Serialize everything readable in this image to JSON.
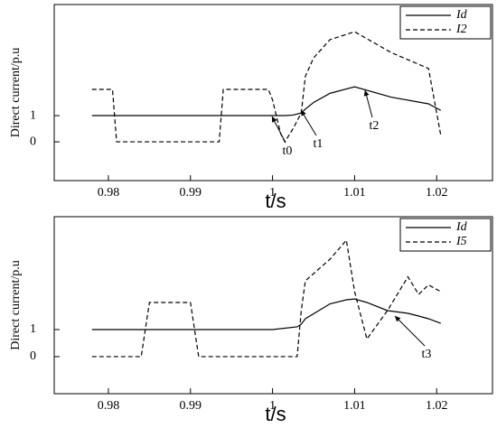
{
  "chart_data": [
    {
      "type": "line",
      "y_label": "Direct current/p.u",
      "x_label": "t/s",
      "x": [
        0.978,
        0.9805,
        0.981,
        0.9935,
        0.994,
        0.9995,
        1.0,
        1.001,
        1.0015,
        1.0025,
        1.0035,
        1.004,
        1.005,
        1.007,
        1.01,
        1.0145,
        1.019,
        1.0205
      ],
      "series": [
        {
          "name": "Id",
          "color": "#000000",
          "style": "solid",
          "values": [
            1,
            1,
            1,
            1,
            1,
            1,
            1,
            1,
            1,
            1.02,
            1.1,
            1.25,
            1.5,
            1.85,
            2.1,
            1.7,
            1.45,
            1.2
          ]
        },
        {
          "name": "I2",
          "color": "#000000",
          "style": "dashed",
          "values": [
            2,
            2,
            0,
            0,
            2,
            2,
            1.6,
            0.3,
            0,
            0.5,
            1.1,
            2.5,
            3.2,
            3.9,
            4.2,
            3.4,
            2.8,
            0.25
          ]
        }
      ],
      "annotations": [
        "t0",
        "t1",
        "t2"
      ],
      "xlim": [
        0.9734,
        1.0268
      ],
      "xticks": [
        0.98,
        0.99,
        1,
        1.01,
        1.02
      ],
      "ylim": [
        -1.48,
        5.24
      ],
      "yticks": [
        0,
        1
      ],
      "legend": "upper right"
    },
    {
      "type": "line",
      "y_label": "Direct current/p.u",
      "x_label": "t/s",
      "x": [
        0.978,
        0.984,
        0.985,
        0.99,
        0.991,
        1.0,
        1.003,
        1.0035,
        1.004,
        1.007,
        1.009,
        1.01,
        1.0115,
        1.014,
        1.0165,
        1.0178,
        1.019,
        1.0205
      ],
      "series": [
        {
          "name": "Id",
          "color": "#000000",
          "style": "solid",
          "values": [
            1,
            1,
            1,
            1,
            1,
            1,
            1.1,
            1.2,
            1.4,
            1.95,
            2.1,
            2.13,
            2.0,
            1.7,
            1.6,
            1.5,
            1.4,
            1.23
          ]
        },
        {
          "name": "I5",
          "color": "#000000",
          "style": "dashed",
          "values": [
            0,
            0,
            2,
            2,
            0,
            0,
            0,
            1.7,
            2.8,
            3.6,
            4.3,
            2.4,
            0.65,
            1.7,
            2.95,
            2.3,
            2.65,
            2.4
          ]
        }
      ],
      "annotations": [
        "t3"
      ],
      "xlim": [
        0.9734,
        1.0268
      ],
      "xticks": [
        0.98,
        0.99,
        1,
        1.01,
        1.02
      ],
      "ylim": [
        -1.37,
        5.17
      ],
      "yticks": [
        0,
        1
      ],
      "legend": "upper right"
    }
  ]
}
